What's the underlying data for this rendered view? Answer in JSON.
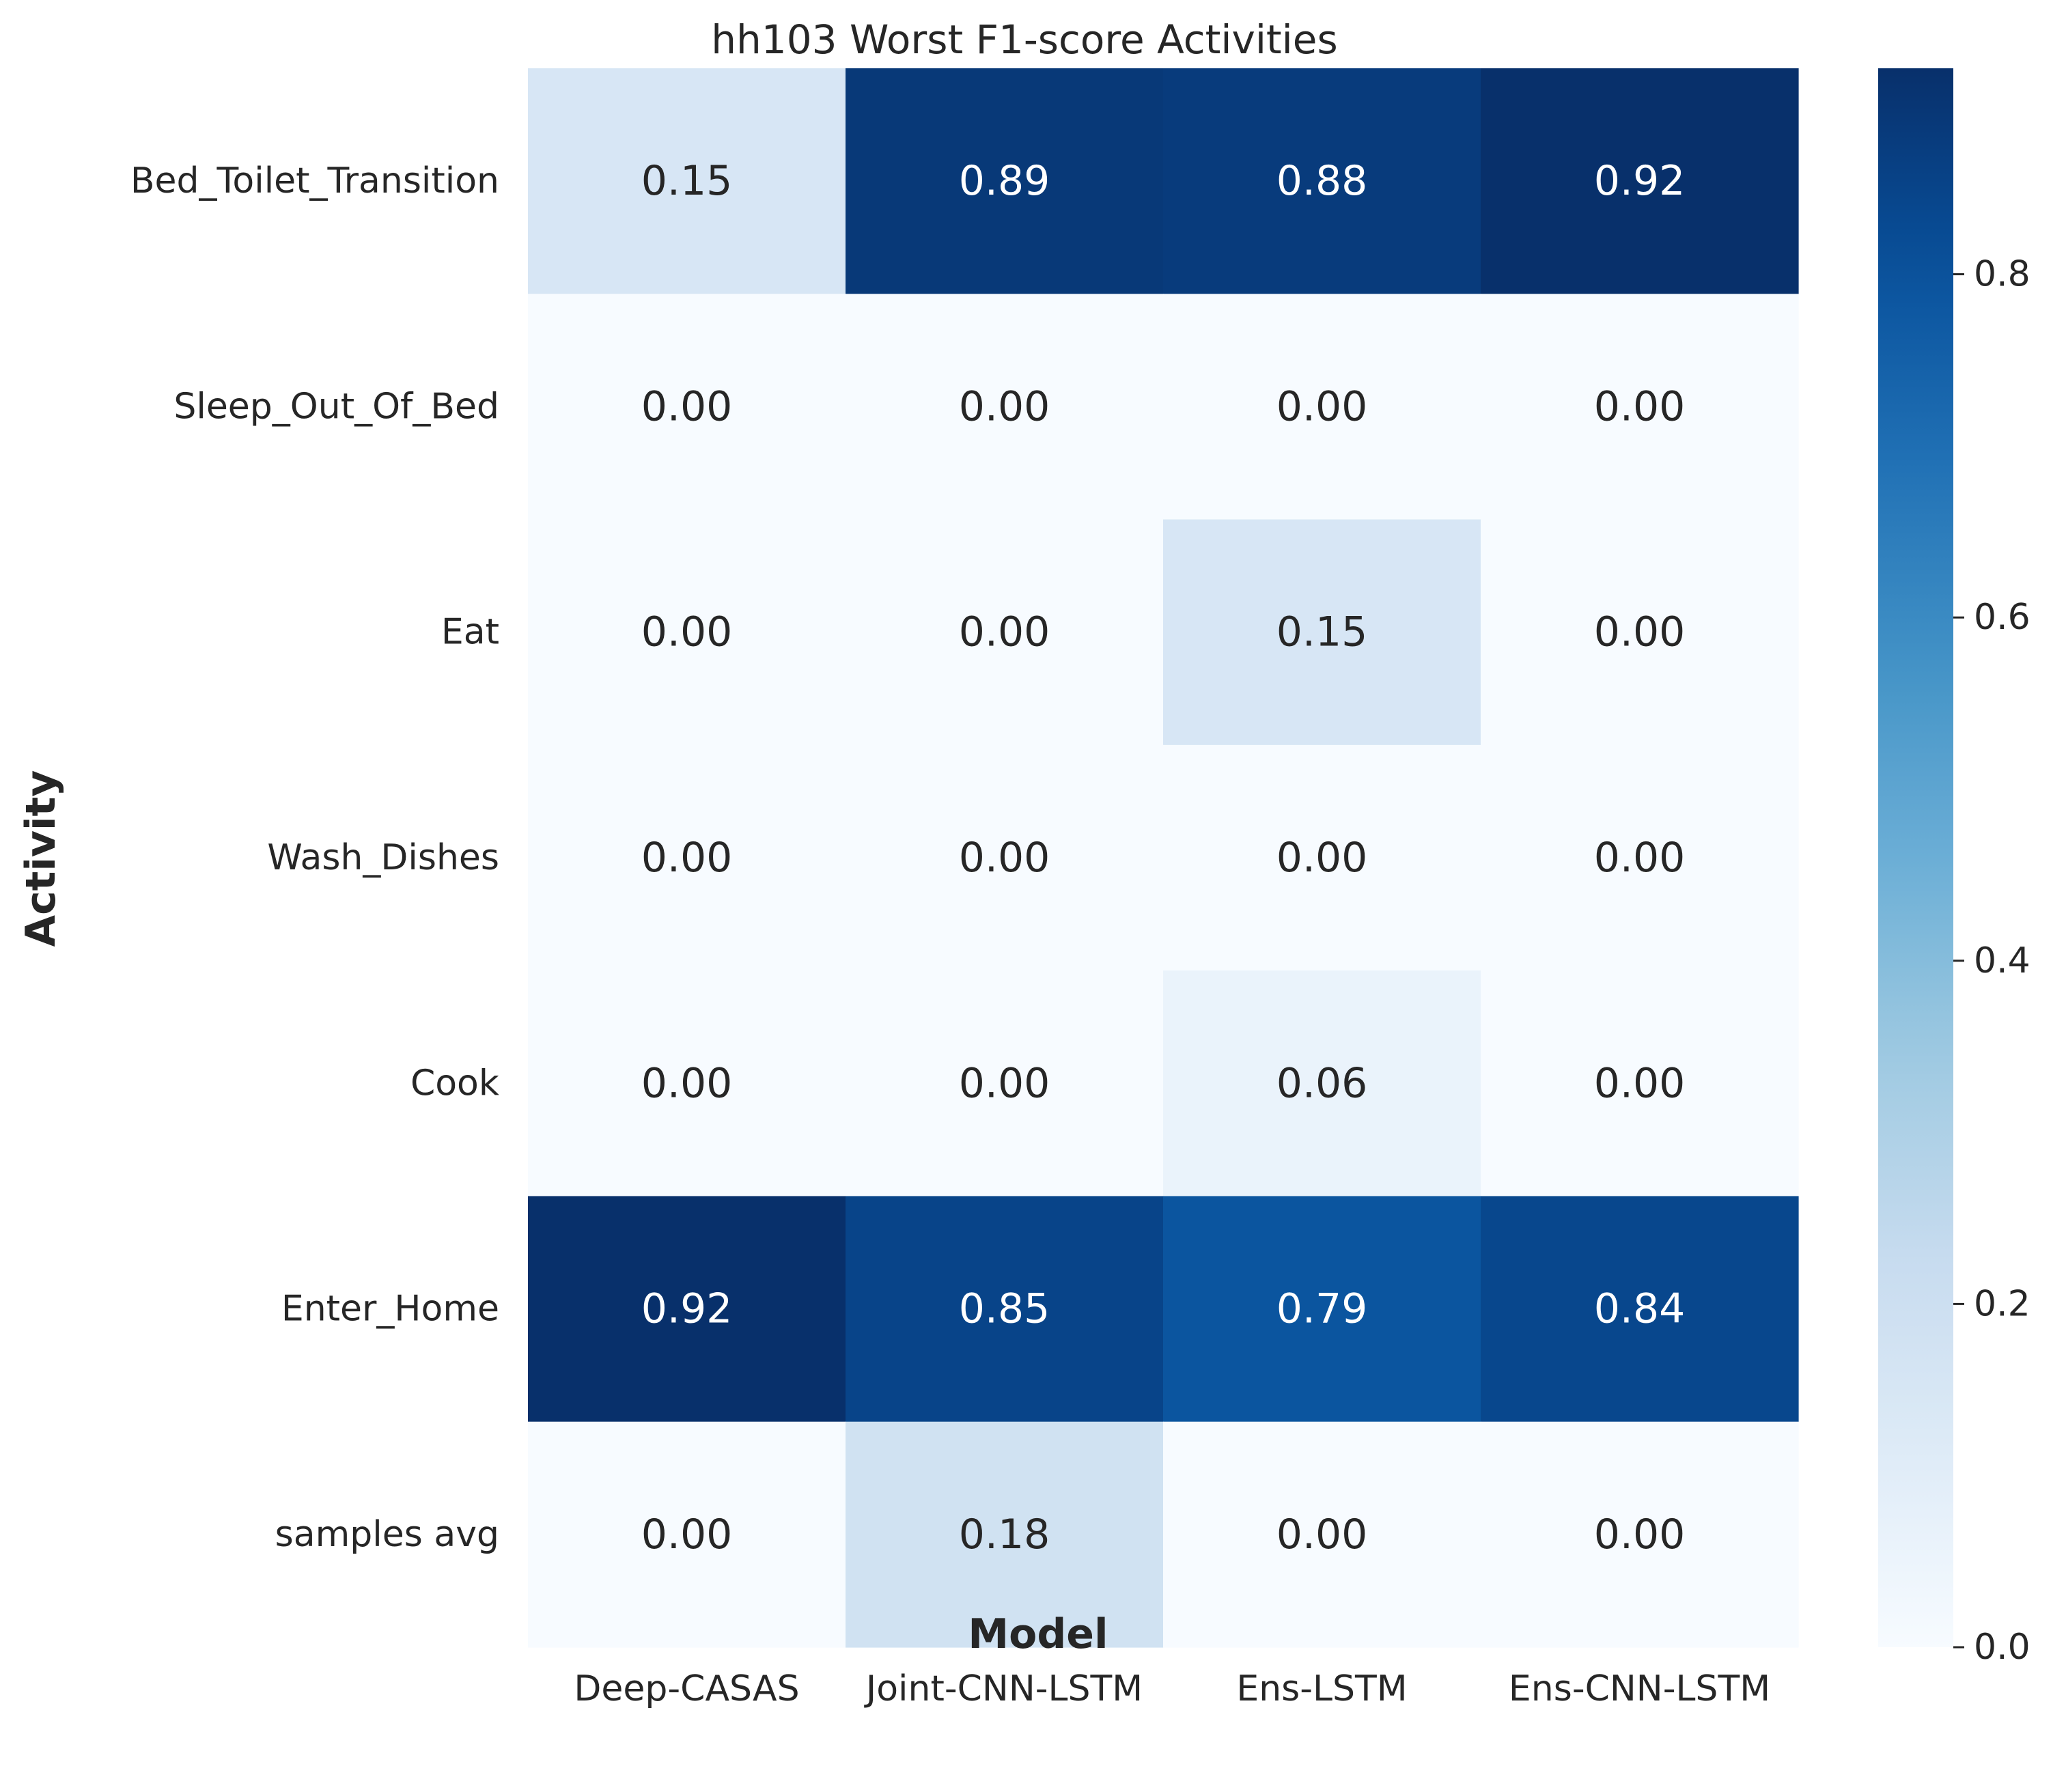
{
  "chart_data": {
    "type": "heatmap",
    "title": "hh103 Worst F1-score Activities",
    "xlabel": "Model",
    "ylabel": "Activity",
    "x_categories": [
      "Deep-CASAS",
      "Joint-CNN-LSTM",
      "Ens-LSTM",
      "Ens-CNN-LSTM"
    ],
    "y_categories": [
      "Bed_Toilet_Transition",
      "Sleep_Out_Of_Bed",
      "Eat",
      "Wash_Dishes",
      "Cook",
      "Enter_Home",
      "samples avg"
    ],
    "values": [
      [
        0.15,
        0.89,
        0.88,
        0.92
      ],
      [
        0.0,
        0.0,
        0.0,
        0.0
      ],
      [
        0.0,
        0.0,
        0.15,
        0.0
      ],
      [
        0.0,
        0.0,
        0.0,
        0.0
      ],
      [
        0.0,
        0.0,
        0.06,
        0.0
      ],
      [
        0.92,
        0.85,
        0.79,
        0.84
      ],
      [
        0.0,
        0.18,
        0.0,
        0.0
      ]
    ],
    "value_format": "0.00",
    "colormap": "Blues",
    "colorbar": {
      "range": [
        0,
        0.92
      ],
      "ticks": [
        0.0,
        0.2,
        0.4,
        0.6,
        0.8
      ],
      "tick_labels": [
        "0.0",
        "0.2",
        "0.4",
        "0.6",
        "0.8"
      ],
      "placement": "right"
    }
  }
}
